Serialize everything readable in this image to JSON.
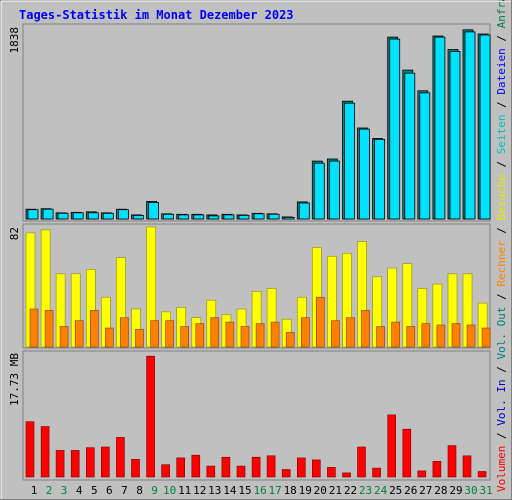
{
  "chart_data": [
    {
      "type": "bar",
      "title": "Tages-Statistik im Monat Dezember 2023",
      "ymax_label": "1838",
      "legend": [
        "Anfragen",
        "Dateien"
      ],
      "legend_separator": " / ",
      "categories": [
        "1",
        "2",
        "3",
        "4",
        "5",
        "6",
        "7",
        "8",
        "9",
        "10",
        "11",
        "12",
        "13",
        "14",
        "15",
        "16",
        "17",
        "18",
        "19",
        "20",
        "21",
        "22",
        "23",
        "24",
        "25",
        "26",
        "27",
        "28",
        "29",
        "30",
        "31"
      ],
      "weekend_days": [
        "2",
        "3",
        "9",
        "10",
        "16",
        "17",
        "23",
        "24",
        "30",
        "31"
      ],
      "series": [
        {
          "name": "Anfragen",
          "color": "#00a0a0",
          "values": [
            95,
            100,
            60,
            65,
            70,
            60,
            95,
            40,
            170,
            50,
            45,
            45,
            40,
            45,
            40,
            55,
            50,
            20,
            165,
            560,
            580,
            1140,
            880,
            780,
            1760,
            1440,
            1240,
            1770,
            1640,
            1830,
            1790
          ]
        },
        {
          "name": "Dateien",
          "color": "#00e0ff",
          "values": [
            90,
            95,
            55,
            60,
            60,
            55,
            90,
            35,
            160,
            45,
            40,
            40,
            30,
            40,
            35,
            50,
            45,
            15,
            155,
            540,
            560,
            1120,
            870,
            770,
            1740,
            1410,
            1220,
            1760,
            1620,
            1810,
            1780
          ]
        }
      ]
    },
    {
      "type": "bar",
      "ymax_label": "82",
      "legend": [
        "Seiten",
        "Besuche",
        "Rechner"
      ],
      "legend_separator": " / ",
      "series": [
        {
          "name": "Seiten",
          "color": "#00d8d8",
          "values": []
        },
        {
          "name": "Besuche",
          "color": "#ffff00",
          "values": [
            78,
            80,
            50,
            50,
            53,
            34,
            61,
            26,
            82,
            24,
            27,
            20,
            32,
            22,
            26,
            38,
            40,
            19,
            34,
            68,
            62,
            64,
            72,
            48,
            54,
            57,
            40,
            43,
            50,
            50,
            30
          ]
        },
        {
          "name": "Rechner",
          "color": "#ff8000",
          "values": [
            26,
            25,
            14,
            18,
            25,
            13,
            20,
            12,
            18,
            18,
            14,
            16,
            20,
            17,
            14,
            16,
            17,
            10,
            20,
            34,
            18,
            20,
            25,
            14,
            17,
            14,
            16,
            15,
            16,
            15,
            13
          ]
        }
      ]
    },
    {
      "type": "bar",
      "ymax_label": "17.73 MB",
      "legend": [
        "Volumen",
        "Vol. In",
        "Vol. Out"
      ],
      "legend_separator": " / ",
      "series": [
        {
          "name": "Volumen",
          "color": "#ff0000",
          "values": [
            8.1,
            7.4,
            3.9,
            3.9,
            4.3,
            4.4,
            5.8,
            2.6,
            17.7,
            1.8,
            2.8,
            3.2,
            1.6,
            2.9,
            1.6,
            2.9,
            3.1,
            1.1,
            2.8,
            2.5,
            1.4,
            0.6,
            4.4,
            1.3,
            9.1,
            7.0,
            0.9,
            2.3,
            4.6,
            3.1,
            0.8
          ]
        }
      ]
    }
  ],
  "colors": {
    "background": "#c0c0c0",
    "title": "#0000ff",
    "weekend_label": "#008040",
    "weekday_label": "#000000"
  }
}
